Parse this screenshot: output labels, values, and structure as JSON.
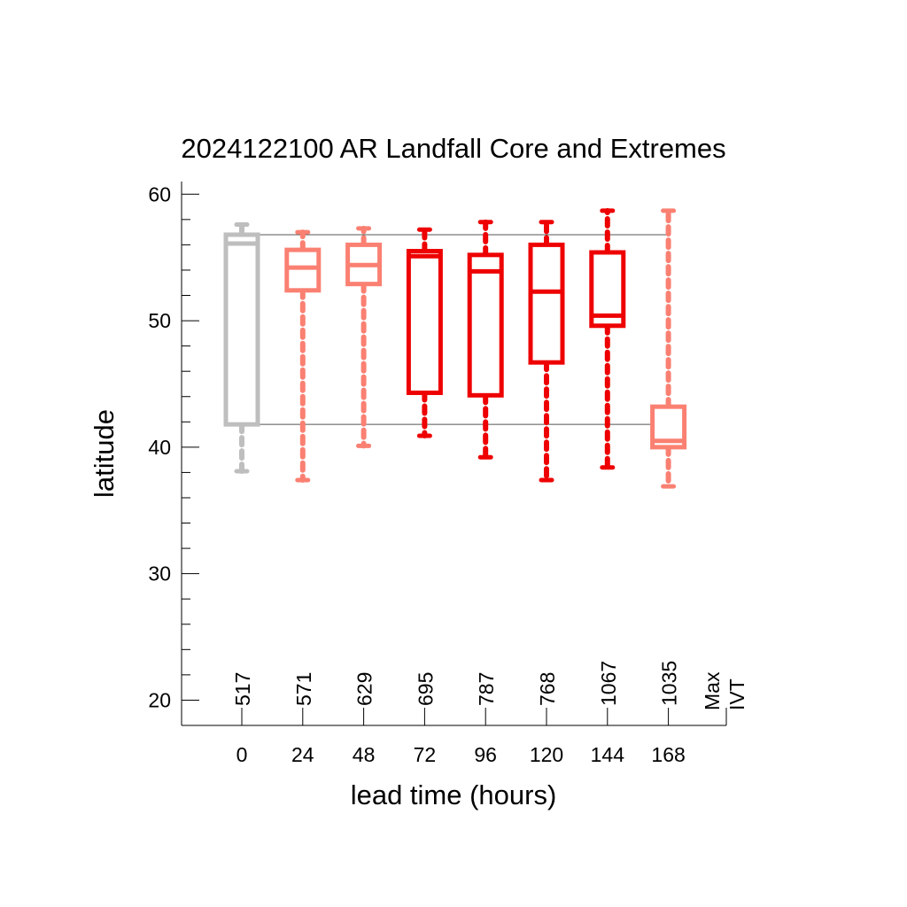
{
  "chart_data": {
    "type": "box",
    "title": "2024122100 AR Landfall Core and Extremes",
    "xlabel": "lead time (hours)",
    "ylabel": "latitude",
    "ylim": [
      18,
      61
    ],
    "yticks": [
      20,
      30,
      40,
      50,
      60
    ],
    "y_minor_step": 2,
    "categories": [
      "0",
      "24",
      "48",
      "72",
      "96",
      "120",
      "144",
      "168"
    ],
    "reference_lines": [
      56.8,
      41.8
    ],
    "max_ivt_label": [
      "Max",
      "IVT"
    ],
    "boxes": [
      {
        "lead": "0",
        "whisker_low": 38.1,
        "q1": 41.8,
        "median": 56.1,
        "q3": 56.8,
        "whisker_high": 57.6,
        "max_ivt": "517",
        "color": "#bebebe"
      },
      {
        "lead": "24",
        "whisker_low": 37.4,
        "q1": 52.4,
        "median": 54.2,
        "q3": 55.6,
        "whisker_high": 57.0,
        "max_ivt": "571",
        "color": "#fa8072"
      },
      {
        "lead": "48",
        "whisker_low": 40.1,
        "q1": 52.9,
        "median": 54.4,
        "q3": 56.0,
        "whisker_high": 57.3,
        "max_ivt": "629",
        "color": "#fa8072"
      },
      {
        "lead": "72",
        "whisker_low": 40.9,
        "q1": 44.3,
        "median": 55.1,
        "q3": 55.5,
        "whisker_high": 57.2,
        "max_ivt": "695",
        "color": "#ee0000"
      },
      {
        "lead": "96",
        "whisker_low": 39.2,
        "q1": 44.1,
        "median": 53.9,
        "q3": 55.2,
        "whisker_high": 57.8,
        "max_ivt": "787",
        "color": "#ee0000"
      },
      {
        "lead": "120",
        "whisker_low": 37.4,
        "q1": 46.7,
        "median": 52.3,
        "q3": 56.0,
        "whisker_high": 57.8,
        "max_ivt": "768",
        "color": "#ee0000"
      },
      {
        "lead": "144",
        "whisker_low": 38.4,
        "q1": 49.6,
        "median": 50.4,
        "q3": 55.4,
        "whisker_high": 58.7,
        "max_ivt": "1067",
        "color": "#ee0000"
      },
      {
        "lead": "168",
        "whisker_low": 36.9,
        "q1": 40.0,
        "median": 40.5,
        "q3": 43.2,
        "whisker_high": 58.7,
        "max_ivt": "1035",
        "color": "#fa8072"
      }
    ],
    "grid": false,
    "legend": "none"
  }
}
